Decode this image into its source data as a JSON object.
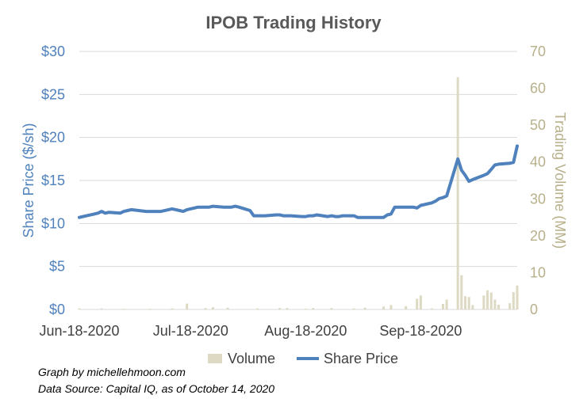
{
  "chart_data": {
    "type": "line",
    "title": "IPOB Trading History",
    "xlabel": "",
    "ylabel": "Share Price ($/sh)",
    "ylabel_right": "Trading Volume (MM)",
    "ylim": [
      0,
      30
    ],
    "ylim_right": [
      0,
      70
    ],
    "grid": true,
    "legend_position": "bottom",
    "y_ticks": [
      "$0",
      "$5",
      "$10",
      "$15",
      "$20",
      "$25",
      "$30"
    ],
    "y_right_ticks": [
      "0",
      "10",
      "20",
      "30",
      "40",
      "50",
      "60",
      "70"
    ],
    "x_ticks": [
      {
        "label": "Jun-18-2020",
        "date": "2020-06-18"
      },
      {
        "label": "Jul-18-2020",
        "date": "2020-07-18"
      },
      {
        "label": "Aug-18-2020",
        "date": "2020-08-18"
      },
      {
        "label": "Sep-18-2020",
        "date": "2020-09-18"
      }
    ],
    "x_range": [
      "2020-06-18",
      "2020-10-14"
    ],
    "series": [
      {
        "name": "Share Price",
        "color": "#4f81bd",
        "axis": "left",
        "type": "line",
        "points": [
          [
            "2020-06-18",
            10.7
          ],
          [
            "2020-06-19",
            10.8
          ],
          [
            "2020-06-22",
            11.1
          ],
          [
            "2020-06-23",
            11.2
          ],
          [
            "2020-06-24",
            11.4
          ],
          [
            "2020-06-25",
            11.2
          ],
          [
            "2020-06-26",
            11.3
          ],
          [
            "2020-06-29",
            11.2
          ],
          [
            "2020-06-30",
            11.4
          ],
          [
            "2020-07-01",
            11.5
          ],
          [
            "2020-07-02",
            11.6
          ],
          [
            "2020-07-06",
            11.4
          ],
          [
            "2020-07-07",
            11.4
          ],
          [
            "2020-07-08",
            11.4
          ],
          [
            "2020-07-09",
            11.4
          ],
          [
            "2020-07-10",
            11.4
          ],
          [
            "2020-07-13",
            11.7
          ],
          [
            "2020-07-14",
            11.6
          ],
          [
            "2020-07-15",
            11.5
          ],
          [
            "2020-07-16",
            11.4
          ],
          [
            "2020-07-17",
            11.6
          ],
          [
            "2020-07-20",
            11.9
          ],
          [
            "2020-07-21",
            11.9
          ],
          [
            "2020-07-22",
            11.9
          ],
          [
            "2020-07-23",
            11.9
          ],
          [
            "2020-07-24",
            12.0
          ],
          [
            "2020-07-27",
            11.9
          ],
          [
            "2020-07-28",
            11.9
          ],
          [
            "2020-07-29",
            11.9
          ],
          [
            "2020-07-30",
            12.0
          ],
          [
            "2020-07-31",
            11.9
          ],
          [
            "2020-08-03",
            11.5
          ],
          [
            "2020-08-04",
            10.9
          ],
          [
            "2020-08-05",
            10.9
          ],
          [
            "2020-08-06",
            10.9
          ],
          [
            "2020-08-07",
            10.9
          ],
          [
            "2020-08-10",
            11.0
          ],
          [
            "2020-08-11",
            11.0
          ],
          [
            "2020-08-12",
            10.9
          ],
          [
            "2020-08-13",
            10.9
          ],
          [
            "2020-08-14",
            10.9
          ],
          [
            "2020-08-17",
            10.8
          ],
          [
            "2020-08-18",
            10.8
          ],
          [
            "2020-08-19",
            10.9
          ],
          [
            "2020-08-20",
            10.9
          ],
          [
            "2020-08-21",
            11.0
          ],
          [
            "2020-08-24",
            10.8
          ],
          [
            "2020-08-25",
            10.9
          ],
          [
            "2020-08-26",
            10.8
          ],
          [
            "2020-08-27",
            10.8
          ],
          [
            "2020-08-28",
            10.9
          ],
          [
            "2020-08-31",
            10.9
          ],
          [
            "2020-09-01",
            10.7
          ],
          [
            "2020-09-02",
            10.7
          ],
          [
            "2020-09-03",
            10.7
          ],
          [
            "2020-09-04",
            10.7
          ],
          [
            "2020-09-08",
            10.7
          ],
          [
            "2020-09-09",
            11.0
          ],
          [
            "2020-09-10",
            11.1
          ],
          [
            "2020-09-11",
            11.9
          ],
          [
            "2020-09-14",
            11.9
          ],
          [
            "2020-09-15",
            11.9
          ],
          [
            "2020-09-16",
            11.9
          ],
          [
            "2020-09-17",
            11.8
          ],
          [
            "2020-09-18",
            12.1
          ],
          [
            "2020-09-21",
            12.4
          ],
          [
            "2020-09-22",
            12.6
          ],
          [
            "2020-09-23",
            12.9
          ],
          [
            "2020-09-24",
            13.0
          ],
          [
            "2020-09-25",
            13.2
          ],
          [
            "2020-09-28",
            17.5
          ],
          [
            "2020-09-29",
            16.2
          ],
          [
            "2020-09-30",
            15.6
          ],
          [
            "2020-10-01",
            14.9
          ],
          [
            "2020-10-02",
            15.1
          ],
          [
            "2020-10-05",
            15.6
          ],
          [
            "2020-10-06",
            15.8
          ],
          [
            "2020-10-07",
            16.3
          ],
          [
            "2020-10-08",
            16.8
          ],
          [
            "2020-10-09",
            16.9
          ],
          [
            "2020-10-12",
            17.0
          ],
          [
            "2020-10-13",
            17.1
          ],
          [
            "2020-10-14",
            19.0
          ]
        ]
      },
      {
        "name": "Volume",
        "color": "#ddd9c3",
        "axis": "right",
        "type": "bar",
        "points": [
          [
            "2020-06-18",
            0.3
          ],
          [
            "2020-06-24",
            0.3
          ],
          [
            "2020-06-30",
            0.2
          ],
          [
            "2020-07-07",
            0.2
          ],
          [
            "2020-07-13",
            0.3
          ],
          [
            "2020-07-17",
            1.6
          ],
          [
            "2020-07-22",
            0.4
          ],
          [
            "2020-07-24",
            0.6
          ],
          [
            "2020-07-28",
            0.5
          ],
          [
            "2020-08-05",
            0.3
          ],
          [
            "2020-08-11",
            0.4
          ],
          [
            "2020-08-13",
            0.4
          ],
          [
            "2020-08-18",
            0.2
          ],
          [
            "2020-08-20",
            0.4
          ],
          [
            "2020-08-25",
            0.4
          ],
          [
            "2020-08-31",
            0.3
          ],
          [
            "2020-09-03",
            0.5
          ],
          [
            "2020-09-08",
            0.8
          ],
          [
            "2020-09-10",
            1.2
          ],
          [
            "2020-09-14",
            0.9
          ],
          [
            "2020-09-17",
            2.9
          ],
          [
            "2020-09-18",
            3.8
          ],
          [
            "2020-09-21",
            0.3
          ],
          [
            "2020-09-24",
            1.5
          ],
          [
            "2020-09-25",
            2.7
          ],
          [
            "2020-09-28",
            63.0
          ],
          [
            "2020-09-29",
            9.3
          ],
          [
            "2020-09-30",
            3.6
          ],
          [
            "2020-10-01",
            3.4
          ],
          [
            "2020-10-02",
            1.2
          ],
          [
            "2020-10-05",
            3.8
          ],
          [
            "2020-10-06",
            5.2
          ],
          [
            "2020-10-07",
            4.6
          ],
          [
            "2020-10-08",
            2.7
          ],
          [
            "2020-10-09",
            1.3
          ],
          [
            "2020-10-12",
            1.7
          ],
          [
            "2020-10-13",
            4.7
          ],
          [
            "2020-10-14",
            6.5
          ]
        ]
      }
    ]
  },
  "footnotes": {
    "credit": "Graph by michellehmoon.com",
    "source": "Data Source: Capital IQ, as of October 14, 2020"
  }
}
